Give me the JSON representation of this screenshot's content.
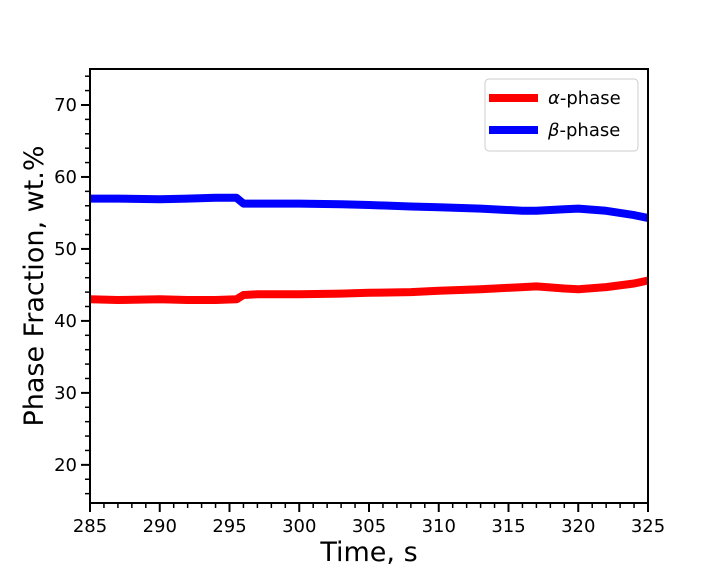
{
  "chart_data": {
    "type": "line",
    "title": "",
    "xlabel": "Time, s",
    "ylabel": "Phase Fraction, wt.%",
    "xlim": [
      285,
      325
    ],
    "ylim": [
      14.7,
      75
    ],
    "x_ticks": [
      285,
      290,
      295,
      300,
      305,
      310,
      315,
      320,
      325
    ],
    "x_tick_labels": [
      "285",
      "290",
      "295",
      "300",
      "305",
      "310",
      "315",
      "320",
      "325"
    ],
    "y_ticks": [
      20,
      30,
      40,
      50,
      60,
      70
    ],
    "y_tick_labels": [
      "20",
      "30",
      "40",
      "50",
      "60",
      "70"
    ],
    "grid": false,
    "legend_position": "top-right",
    "series": [
      {
        "name": "α-phase",
        "name_prefix": "α",
        "name_suffix": "-phase",
        "color": "#ff0000",
        "x": [
          285,
          287,
          290,
          292,
          294,
          295.5,
          296,
          297,
          300,
          303,
          305,
          308,
          310,
          313,
          316,
          317,
          319,
          320,
          322,
          324,
          325
        ],
        "y": [
          43.0,
          42.9,
          43.0,
          42.9,
          42.9,
          43.0,
          43.6,
          43.7,
          43.7,
          43.8,
          43.9,
          44.0,
          44.2,
          44.4,
          44.7,
          44.8,
          44.5,
          44.4,
          44.7,
          45.2,
          45.6
        ]
      },
      {
        "name": "β-phase",
        "name_prefix": "β",
        "name_suffix": "-phase",
        "color": "#0000ff",
        "x": [
          285,
          287,
          290,
          292,
          294,
          295.5,
          296,
          297,
          300,
          303,
          305,
          308,
          310,
          313,
          316,
          317,
          319,
          320,
          322,
          324,
          325
        ],
        "y": [
          57.0,
          57.0,
          56.9,
          57.0,
          57.1,
          57.1,
          56.3,
          56.3,
          56.3,
          56.2,
          56.1,
          55.9,
          55.8,
          55.6,
          55.3,
          55.3,
          55.5,
          55.6,
          55.3,
          54.7,
          54.3
        ]
      }
    ]
  }
}
